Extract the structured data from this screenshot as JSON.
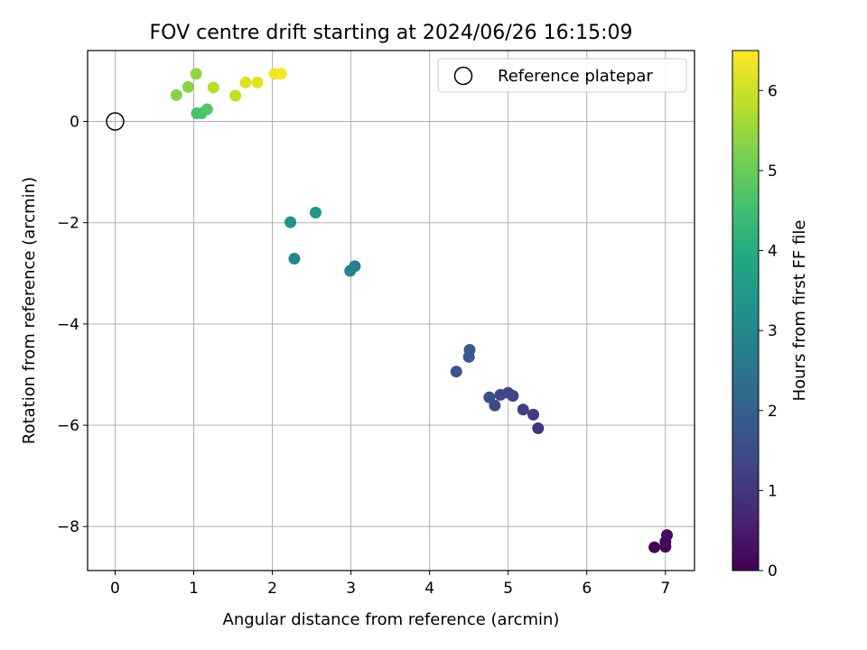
{
  "chart_data": {
    "type": "scatter",
    "title": "FOV centre drift starting at 2024/06/26 16:15:09",
    "xlabel": "Angular distance from reference (arcmin)",
    "ylabel": "Rotation from reference (arcmin)",
    "xlim": [
      -0.35,
      7.37
    ],
    "ylim": [
      -8.87,
      1.4
    ],
    "x_ticks": [
      0,
      1,
      2,
      3,
      4,
      5,
      6,
      7
    ],
    "x_tick_labels": [
      "0",
      "1",
      "2",
      "3",
      "4",
      "5",
      "6",
      "7"
    ],
    "y_ticks": [
      0,
      -2,
      -4,
      -6,
      -8
    ],
    "y_tick_labels": [
      "0",
      "−2",
      "−4",
      "−6",
      "−8"
    ],
    "grid": true,
    "legend": {
      "placement": "top-right",
      "entries": [
        "Reference platepar"
      ]
    },
    "colorbar": {
      "label": "Hours from first FF file",
      "colormap": "viridis",
      "range": [
        0,
        6.5
      ],
      "ticks": [
        0,
        1,
        2,
        3,
        4,
        5,
        6
      ],
      "tick_labels": [
        "0",
        "1",
        "2",
        "3",
        "4",
        "5",
        "6"
      ]
    },
    "reference_point": {
      "x": 0,
      "y": 0,
      "name": "Reference platepar"
    },
    "points": [
      {
        "x": 6.86,
        "y": -8.41,
        "hours": 0.0
      },
      {
        "x": 7.0,
        "y": -8.4,
        "hours": 0.1
      },
      {
        "x": 7.0,
        "y": -8.3,
        "hours": 0.15
      },
      {
        "x": 7.02,
        "y": -8.17,
        "hours": 0.2
      },
      {
        "x": 5.38,
        "y": -6.06,
        "hours": 1.0
      },
      {
        "x": 5.32,
        "y": -5.79,
        "hours": 1.1
      },
      {
        "x": 5.19,
        "y": -5.69,
        "hours": 1.2
      },
      {
        "x": 5.06,
        "y": -5.42,
        "hours": 1.3
      },
      {
        "x": 5.0,
        "y": -5.36,
        "hours": 1.35
      },
      {
        "x": 4.9,
        "y": -5.4,
        "hours": 1.4
      },
      {
        "x": 4.83,
        "y": -5.61,
        "hours": 1.5
      },
      {
        "x": 4.76,
        "y": -5.45,
        "hours": 1.55
      },
      {
        "x": 4.34,
        "y": -4.94,
        "hours": 1.7
      },
      {
        "x": 4.5,
        "y": -4.65,
        "hours": 1.75
      },
      {
        "x": 4.51,
        "y": -4.51,
        "hours": 1.8
      },
      {
        "x": 3.05,
        "y": -2.86,
        "hours": 2.8
      },
      {
        "x": 2.99,
        "y": -2.95,
        "hours": 2.85
      },
      {
        "x": 2.28,
        "y": -2.71,
        "hours": 3.0
      },
      {
        "x": 2.23,
        "y": -1.99,
        "hours": 3.3
      },
      {
        "x": 2.55,
        "y": -1.8,
        "hours": 3.4
      },
      {
        "x": 1.04,
        "y": 0.16,
        "hours": 4.6
      },
      {
        "x": 1.1,
        "y": 0.16,
        "hours": 4.65
      },
      {
        "x": 1.17,
        "y": 0.24,
        "hours": 4.75
      },
      {
        "x": 0.78,
        "y": 0.52,
        "hours": 5.3
      },
      {
        "x": 0.93,
        "y": 0.68,
        "hours": 5.35
      },
      {
        "x": 1.03,
        "y": 0.94,
        "hours": 5.45
      },
      {
        "x": 1.25,
        "y": 0.67,
        "hours": 5.8
      },
      {
        "x": 1.53,
        "y": 0.51,
        "hours": 5.9
      },
      {
        "x": 1.66,
        "y": 0.77,
        "hours": 6.1
      },
      {
        "x": 1.81,
        "y": 0.77,
        "hours": 6.2
      },
      {
        "x": 2.03,
        "y": 0.94,
        "hours": 6.35
      },
      {
        "x": 2.11,
        "y": 0.94,
        "hours": 6.4
      }
    ]
  }
}
